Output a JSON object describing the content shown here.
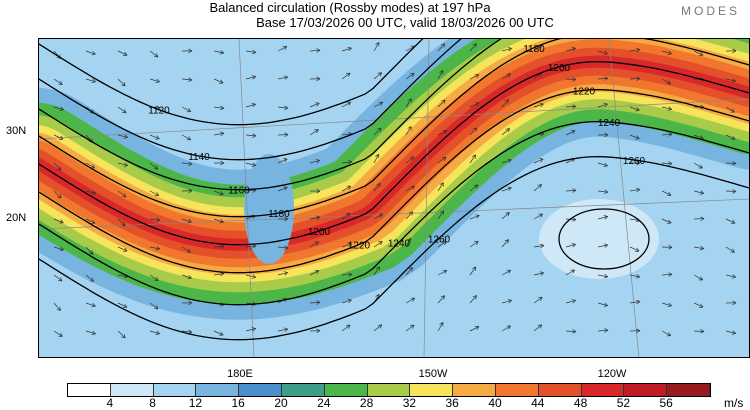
{
  "header": {
    "title": "Balanced circulation (Rossby modes) at 197 hPa",
    "subtitle": "Base 17/03/2026 00 UTC, valid 18/03/2026 00 UTC",
    "logo": "MODES"
  },
  "axes": {
    "lat_labels": [
      "30N",
      "20N"
    ],
    "lon_labels": [
      "180E",
      "150W",
      "120W"
    ]
  },
  "contours": [
    "1120",
    "1140",
    "1160",
    "1180",
    "1200",
    "1220",
    "1240",
    "1260"
  ],
  "colorbar": {
    "units": "m/s",
    "ticks": [
      "4",
      "8",
      "12",
      "16",
      "20",
      "24",
      "28",
      "32",
      "36",
      "40",
      "44",
      "48",
      "52",
      "56"
    ],
    "colors": [
      "#ffffff",
      "#cfe8f7",
      "#a4d4f1",
      "#78b4e0",
      "#4a8fcc",
      "#3e9e8a",
      "#4cb648",
      "#a8cc4a",
      "#f6e45a",
      "#f6aa44",
      "#f2772e",
      "#e4502a",
      "#d8282a",
      "#c01c28",
      "#961c20"
    ]
  }
}
